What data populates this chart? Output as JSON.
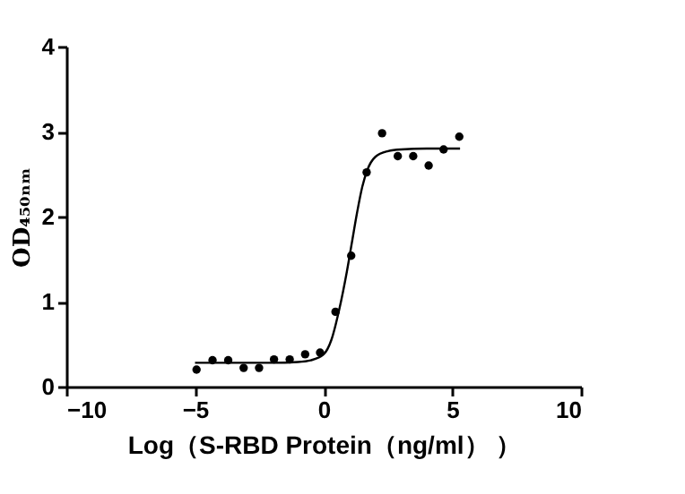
{
  "chart_data": {
    "type": "scatter",
    "xlabel": "Log（S-RBD Protein（ng/ml） ）",
    "ylabel": "OD₄₅₀ₙₘ",
    "xlim": [
      -10,
      10
    ],
    "xticks": [
      -10,
      -5,
      0,
      5,
      10
    ],
    "ylim": [
      0,
      4
    ],
    "yticks": [
      0,
      1,
      2,
      3,
      4
    ],
    "grid": false,
    "series": [
      {
        "color": "#000000",
        "marker": "circle",
        "x": [
          -4.94,
          -4.32,
          -3.71,
          -3.11,
          -2.51,
          -1.93,
          -1.32,
          -0.72,
          -0.14,
          0.46,
          1.07,
          1.67,
          2.27,
          2.88,
          3.48,
          4.08,
          4.66,
          5.27
        ],
        "values": [
          0.2,
          0.31,
          0.31,
          0.22,
          0.22,
          0.32,
          0.32,
          0.38,
          0.4,
          0.88,
          1.54,
          2.52,
          2.98,
          2.71,
          2.71,
          2.6,
          2.79,
          2.94
        ]
      },
      {
        "type": "line",
        "color": "#000000",
        "line_style": "solid",
        "x": [
          -5,
          -4,
          -3,
          -2,
          -1,
          -0.5,
          0,
          0.3,
          0.6,
          0.9,
          1.1,
          1.3,
          1.5,
          1.7,
          2.0,
          2.5,
          3,
          4,
          5.3
        ],
        "values": [
          0.28,
          0.28,
          0.28,
          0.28,
          0.29,
          0.31,
          0.38,
          0.55,
          0.9,
          1.35,
          1.7,
          2.05,
          2.35,
          2.55,
          2.7,
          2.77,
          2.79,
          2.8,
          2.8
        ]
      }
    ]
  }
}
